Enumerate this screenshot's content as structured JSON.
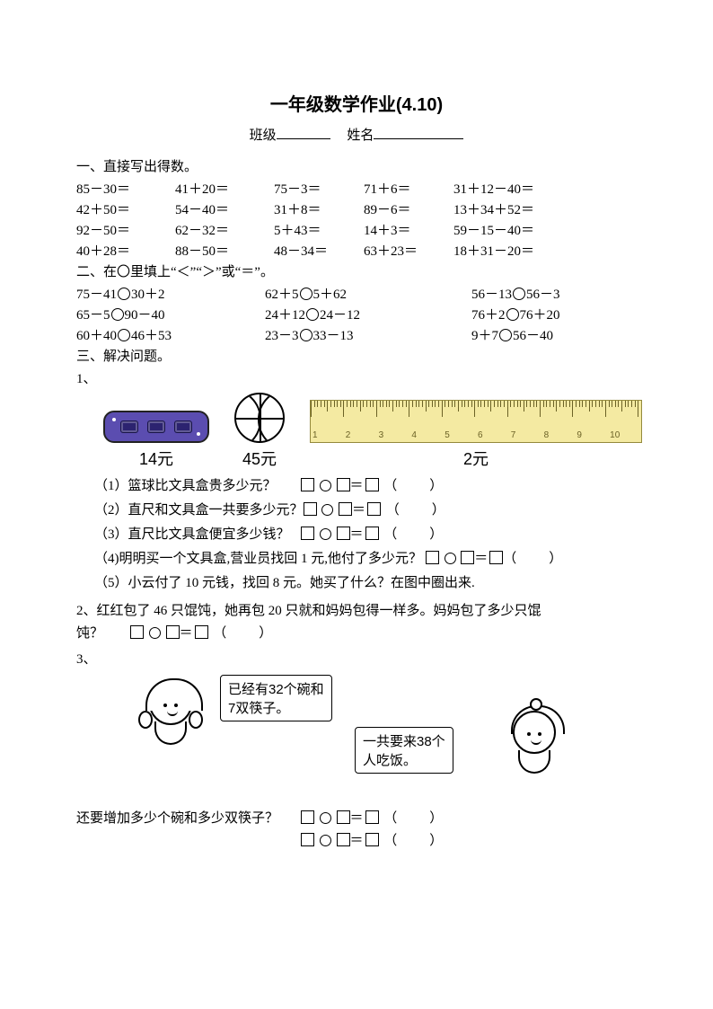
{
  "title": "一年级数学作业(4.10)",
  "sub_labels": {
    "class": "班级",
    "name": "姓名"
  },
  "section1": {
    "head": "一、直接写出得数。",
    "rows": [
      [
        "85－30＝",
        "41＋20＝",
        "75－3＝",
        "71＋6＝",
        "31＋12－40＝"
      ],
      [
        "42＋50＝",
        "54－40＝",
        "31＋8＝",
        "89－6＝",
        "13＋34＋52＝"
      ],
      [
        "92－50＝",
        "62－32＝",
        "5＋43＝",
        "14＋3＝",
        "59－15－40＝"
      ],
      [
        "40＋28＝",
        "88－50＝",
        "48－34＝",
        "63＋23＝",
        "18＋31－20＝"
      ]
    ]
  },
  "section2": {
    "head": "二、在〇里填上“＜”“＞”或“＝”。",
    "rows": [
      [
        [
          "75－41",
          "30＋2"
        ],
        [
          "62＋5",
          "5＋62"
        ],
        [
          "56－13",
          "56－3"
        ]
      ],
      [
        [
          "65－5",
          "90－40"
        ],
        [
          "24＋12",
          "24－12"
        ],
        [
          "76＋2",
          "76＋20"
        ]
      ],
      [
        [
          "60＋40",
          "46＋53"
        ],
        [
          "23－3",
          "33－13"
        ],
        [
          "9＋7",
          "56－40"
        ]
      ]
    ]
  },
  "section3": {
    "head": "三、解决问题。",
    "q1": {
      "num": "1、",
      "prices": {
        "box": "14元",
        "ball": "45元",
        "ruler": "2元"
      },
      "subs": [
        "（1）篮球比文具盒贵多少元？",
        "（2）直尺和文具盒一共要多少元？",
        "（3）直尺比文具盒便宜多少钱？"
      ],
      "sub4": "（4)明明买一个文具盒,营业员找回 1 元,他付了多少元？",
      "sub5": "（5）小云付了 10 元钱，找回 8 元。她买了什么？在图中圈出来."
    },
    "q2": {
      "line1": "2、红红包了 46 只馄饨，她再包 20 只就和妈妈包得一样多。妈妈包了多少只馄",
      "line2_pre": "饨？"
    },
    "q3": {
      "num": "3、",
      "bubble1_l1": "已经有32个碗和",
      "bubble1_l2": "7双筷子。",
      "bubble2_l1": "一共要来38个",
      "bubble2_l2": "人吃饭。",
      "question": "还要增加多少个碗和多少双筷子？"
    }
  },
  "paren_open": "（",
  "paren_close": "）",
  "ruler_numbers": [
    "1",
    "2",
    "3",
    "4",
    "5",
    "6",
    "7",
    "8",
    "9",
    "10"
  ],
  "ruler_ticks": {
    "major_height": 18,
    "mid_height": 12,
    "minor_height": 7,
    "count": 101,
    "color": "#6b6226"
  },
  "colors": {
    "ruler_bg": "#f4eaa2",
    "ruler_border": "#948a3d",
    "pencilbox_bg": "#5b4db0",
    "text": "#000000",
    "background": "#ffffff"
  }
}
